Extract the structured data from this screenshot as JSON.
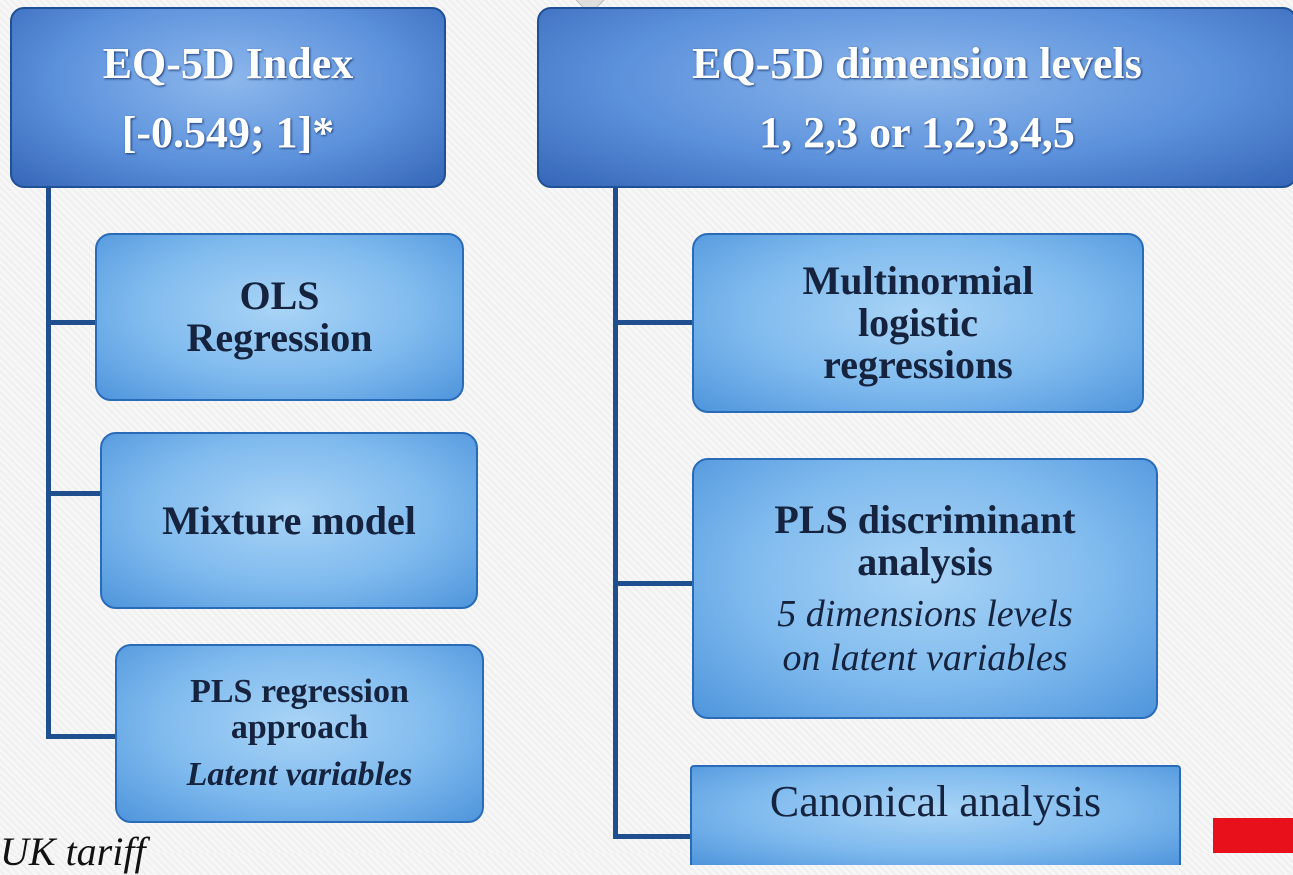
{
  "left": {
    "title": "EQ-5D Index",
    "range": "[-0.549; 1]*",
    "methods": [
      {
        "lines": [
          "OLS",
          "Regression"
        ]
      },
      {
        "lines": [
          "Mixture model"
        ]
      },
      {
        "lines": [
          "PLS regression",
          "approach"
        ],
        "note": [
          "Latent variables"
        ]
      }
    ]
  },
  "right": {
    "title": "EQ-5D dimension levels",
    "range": "1, 2,3 or 1,2,3,4,5",
    "methods": [
      {
        "lines": [
          "Multinormial",
          "logistic",
          "regressions"
        ]
      },
      {
        "lines": [
          "PLS discriminant",
          "analysis"
        ],
        "note": [
          "5 dimensions levels",
          "on latent variables"
        ]
      },
      {
        "lines": [
          "Canonical analysis"
        ]
      }
    ]
  },
  "footnote": "UK tariff"
}
